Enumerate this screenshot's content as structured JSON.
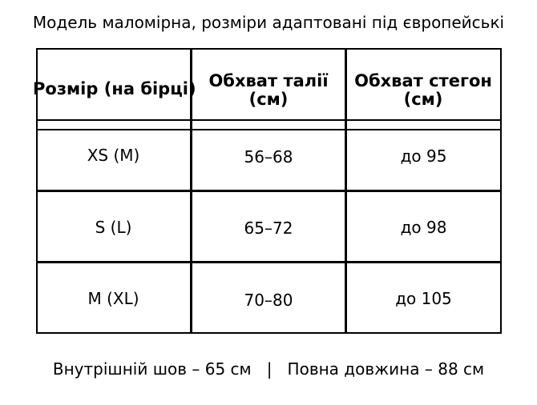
{
  "title": "Модель маломірна, розміри адаптовані під європейські",
  "table": {
    "headers": [
      "Розмір (на бірці)",
      "Обхват талії (см)",
      "Обхват стегон (см)"
    ],
    "header_lines": [
      [
        "Розмір (на бірці)"
      ],
      [
        "Обхват талії",
        "(см)"
      ],
      [
        "Обхват стегон",
        "(см)"
      ]
    ],
    "rows": [
      [
        "XS (M)",
        "56–68",
        "до 95"
      ],
      [
        "S (L)",
        "65–72",
        "до 98"
      ],
      [
        "M (XL)",
        "70–80",
        "до 105"
      ]
    ]
  },
  "footer": {
    "inseam": "Внутрішній шов – 65 см",
    "separator": "|",
    "length": "Повна довжина – 88 см"
  }
}
